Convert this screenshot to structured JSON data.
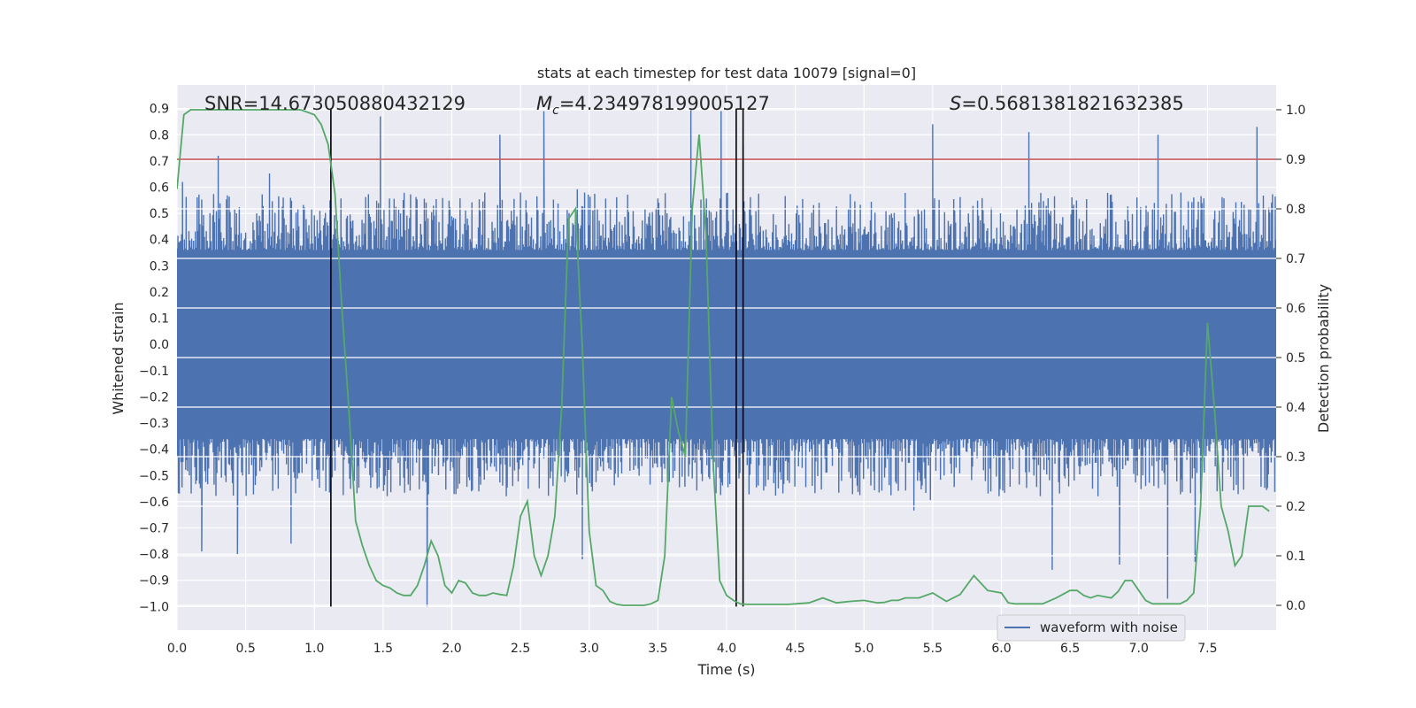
{
  "chart_data": {
    "type": "line",
    "title": "stats at each timestep for test data 10079 [signal=0]",
    "xlabel": "Time (s)",
    "ylabel_left": "Whitened strain",
    "ylabel_right": "Detection probability",
    "xlim": [
      0.0,
      8.0
    ],
    "ylim_left": [
      -1.09,
      0.99
    ],
    "ylim_right": [
      -0.05,
      1.05
    ],
    "x_ticks": [
      "0.0",
      "0.5",
      "1.0",
      "1.5",
      "2.0",
      "2.5",
      "3.0",
      "3.5",
      "4.0",
      "4.5",
      "5.0",
      "5.5",
      "6.0",
      "6.5",
      "7.0",
      "7.5"
    ],
    "y_left_ticks": [
      "0.9",
      "0.8",
      "0.7",
      "0.6",
      "0.5",
      "0.4",
      "0.3",
      "0.2",
      "0.1",
      "0.0",
      "−0.1",
      "−0.2",
      "−0.3",
      "−0.4",
      "−0.5",
      "−0.6",
      "−0.7",
      "−0.8",
      "−0.9",
      "−1.0"
    ],
    "y_right_ticks": [
      "1.0",
      "0.9",
      "0.8",
      "0.7",
      "0.6",
      "0.5",
      "0.4",
      "0.3",
      "0.2",
      "0.1",
      "0.0"
    ],
    "grid": true,
    "annotations": {
      "snr": "SNR=14.673050880432129",
      "mc_symbol": "M",
      "mc_sub": "c",
      "mc_value": "=4.234978199005127",
      "s_symbol": "S",
      "s_value": "=0.5681381821632385"
    },
    "threshold": {
      "y_right": 0.9,
      "color": "#c44e52"
    },
    "vertical_markers": [
      1.12,
      4.07,
      4.12
    ],
    "marker_color": "#000000",
    "series": [
      {
        "name": "waveform with noise",
        "color": "#4c72b0",
        "axis": "left",
        "description": "dense noisy strain oscillation; envelope approximately ±0.35 to ±0.6",
        "peaks_up": [
          [
            0.04,
            0.62
          ],
          [
            0.3,
            0.72
          ],
          [
            1.48,
            0.87
          ],
          [
            2.35,
            0.8
          ],
          [
            2.67,
            0.89
          ],
          [
            3.74,
            0.9
          ],
          [
            3.96,
            0.89
          ],
          [
            4.12,
            0.76
          ],
          [
            5.5,
            0.84
          ],
          [
            6.2,
            0.81
          ],
          [
            7.14,
            0.8
          ],
          [
            7.86,
            0.83
          ]
        ],
        "peaks_down": [
          [
            0.18,
            -0.79
          ],
          [
            0.44,
            -0.8
          ],
          [
            0.83,
            -0.76
          ],
          [
            1.82,
            -1.0
          ],
          [
            2.95,
            -0.82
          ],
          [
            6.37,
            -0.86
          ],
          [
            6.86,
            -0.84
          ],
          [
            7.21,
            -0.97
          ],
          [
            7.41,
            -0.83
          ]
        ]
      },
      {
        "name": "",
        "color": "#55a868",
        "axis": "right",
        "x": [
          0.0,
          0.05,
          0.1,
          0.15,
          0.2,
          0.3,
          0.4,
          0.5,
          0.6,
          0.7,
          0.8,
          0.9,
          1.0,
          1.05,
          1.1,
          1.15,
          1.2,
          1.25,
          1.3,
          1.35,
          1.4,
          1.45,
          1.5,
          1.55,
          1.6,
          1.65,
          1.7,
          1.75,
          1.8,
          1.85,
          1.9,
          1.95,
          2.0,
          2.05,
          2.1,
          2.15,
          2.2,
          2.25,
          2.3,
          2.35,
          2.4,
          2.45,
          2.5,
          2.55,
          2.6,
          2.65,
          2.7,
          2.75,
          2.8,
          2.85,
          2.9,
          2.95,
          3.0,
          3.05,
          3.1,
          3.15,
          3.2,
          3.25,
          3.3,
          3.35,
          3.4,
          3.45,
          3.5,
          3.55,
          3.6,
          3.65,
          3.7,
          3.75,
          3.8,
          3.85,
          3.9,
          3.95,
          4.0,
          4.05,
          4.1,
          4.15,
          4.2,
          4.25,
          4.3,
          4.35,
          4.4,
          4.45,
          4.5,
          4.6,
          4.7,
          4.8,
          4.9,
          5.0,
          5.1,
          5.15,
          5.2,
          5.25,
          5.3,
          5.4,
          5.5,
          5.6,
          5.7,
          5.8,
          5.9,
          6.0,
          6.05,
          6.1,
          6.15,
          6.2,
          6.3,
          6.4,
          6.5,
          6.55,
          6.6,
          6.65,
          6.7,
          6.8,
          6.85,
          6.9,
          6.95,
          7.0,
          7.05,
          7.1,
          7.2,
          7.3,
          7.35,
          7.4,
          7.45,
          7.5,
          7.55,
          7.6,
          7.65,
          7.7,
          7.75,
          7.8,
          7.85,
          7.9,
          7.95
        ],
        "y": [
          0.84,
          0.99,
          1.0,
          1.0,
          1.0,
          1.0,
          1.0,
          1.0,
          1.0,
          1.0,
          1.0,
          1.0,
          0.99,
          0.97,
          0.93,
          0.83,
          0.6,
          0.4,
          0.17,
          0.12,
          0.08,
          0.05,
          0.04,
          0.035,
          0.025,
          0.02,
          0.02,
          0.04,
          0.08,
          0.13,
          0.1,
          0.04,
          0.025,
          0.05,
          0.045,
          0.025,
          0.02,
          0.02,
          0.025,
          0.022,
          0.02,
          0.08,
          0.18,
          0.21,
          0.1,
          0.06,
          0.1,
          0.18,
          0.4,
          0.78,
          0.8,
          0.52,
          0.15,
          0.04,
          0.03,
          0.008,
          0.002,
          0.0,
          0.0,
          0.0,
          0.0,
          0.003,
          0.01,
          0.1,
          0.42,
          0.35,
          0.3,
          0.8,
          0.95,
          0.75,
          0.3,
          0.05,
          0.02,
          0.01,
          0.003,
          0.002,
          0.002,
          0.002,
          0.002,
          0.002,
          0.002,
          0.002,
          0.003,
          0.005,
          0.015,
          0.005,
          0.008,
          0.01,
          0.005,
          0.006,
          0.01,
          0.01,
          0.015,
          0.015,
          0.025,
          0.008,
          0.022,
          0.06,
          0.03,
          0.025,
          0.005,
          0.003,
          0.003,
          0.003,
          0.003,
          0.015,
          0.03,
          0.03,
          0.02,
          0.015,
          0.02,
          0.015,
          0.028,
          0.05,
          0.05,
          0.03,
          0.01,
          0.003,
          0.003,
          0.003,
          0.01,
          0.025,
          0.2,
          0.57,
          0.4,
          0.2,
          0.15,
          0.08,
          0.1,
          0.2,
          0.2,
          0.2,
          0.19
        ]
      }
    ],
    "legend": {
      "placement": "lower right",
      "entries": [
        "waveform with noise"
      ]
    }
  }
}
